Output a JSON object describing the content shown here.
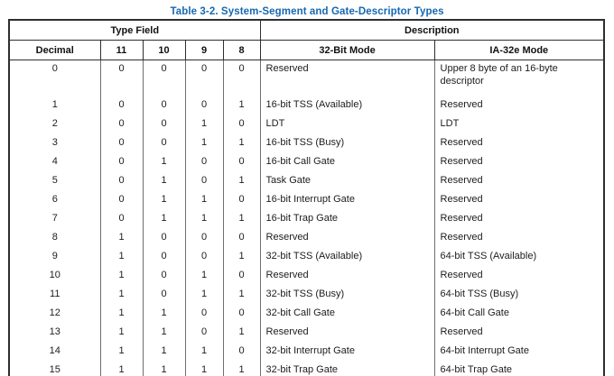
{
  "title": "Table 3-2.  System-Segment and Gate-Descriptor Types",
  "header": {
    "type_field": "Type Field",
    "description": "Description",
    "columns": [
      "Decimal",
      "11",
      "10",
      "9",
      "8",
      "32-Bit Mode",
      "IA-32e Mode"
    ]
  },
  "rows": [
    {
      "decimal": "0",
      "bits": [
        "0",
        "0",
        "0",
        "0"
      ],
      "mode_32bit": "Reserved",
      "mode_ia32e": "Upper 8 byte of an 16-byte descriptor"
    },
    {
      "decimal": "1",
      "bits": [
        "0",
        "0",
        "0",
        "1"
      ],
      "mode_32bit": "16-bit TSS (Available)",
      "mode_ia32e": "Reserved"
    },
    {
      "decimal": "2",
      "bits": [
        "0",
        "0",
        "1",
        "0"
      ],
      "mode_32bit": "LDT",
      "mode_ia32e": "LDT"
    },
    {
      "decimal": "3",
      "bits": [
        "0",
        "0",
        "1",
        "1"
      ],
      "mode_32bit": "16-bit TSS (Busy)",
      "mode_ia32e": "Reserved"
    },
    {
      "decimal": "4",
      "bits": [
        "0",
        "1",
        "0",
        "0"
      ],
      "mode_32bit": "16-bit Call Gate",
      "mode_ia32e": "Reserved"
    },
    {
      "decimal": "5",
      "bits": [
        "0",
        "1",
        "0",
        "1"
      ],
      "mode_32bit": "Task Gate",
      "mode_ia32e": "Reserved"
    },
    {
      "decimal": "6",
      "bits": [
        "0",
        "1",
        "1",
        "0"
      ],
      "mode_32bit": "16-bit Interrupt Gate",
      "mode_ia32e": "Reserved"
    },
    {
      "decimal": "7",
      "bits": [
        "0",
        "1",
        "1",
        "1"
      ],
      "mode_32bit": "16-bit Trap Gate",
      "mode_ia32e": "Reserved"
    },
    {
      "decimal": "8",
      "bits": [
        "1",
        "0",
        "0",
        "0"
      ],
      "mode_32bit": "Reserved",
      "mode_ia32e": "Reserved"
    },
    {
      "decimal": "9",
      "bits": [
        "1",
        "0",
        "0",
        "1"
      ],
      "mode_32bit": "32-bit TSS (Available)",
      "mode_ia32e": "64-bit TSS (Available)"
    },
    {
      "decimal": "10",
      "bits": [
        "1",
        "0",
        "1",
        "0"
      ],
      "mode_32bit": "Reserved",
      "mode_ia32e": "Reserved"
    },
    {
      "decimal": "11",
      "bits": [
        "1",
        "0",
        "1",
        "1"
      ],
      "mode_32bit": "32-bit TSS (Busy)",
      "mode_ia32e": "64-bit TSS (Busy)"
    },
    {
      "decimal": "12",
      "bits": [
        "1",
        "1",
        "0",
        "0"
      ],
      "mode_32bit": "32-bit Call Gate",
      "mode_ia32e": "64-bit Call Gate"
    },
    {
      "decimal": "13",
      "bits": [
        "1",
        "1",
        "0",
        "1"
      ],
      "mode_32bit": "Reserved",
      "mode_ia32e": "Reserved"
    },
    {
      "decimal": "14",
      "bits": [
        "1",
        "1",
        "1",
        "0"
      ],
      "mode_32bit": "32-bit Interrupt Gate",
      "mode_ia32e": "64-bit Interrupt Gate"
    },
    {
      "decimal": "15",
      "bits": [
        "1",
        "1",
        "1",
        "1"
      ],
      "mode_32bit": "32-bit Trap Gate",
      "mode_ia32e": "64-bit Trap Gate"
    }
  ],
  "colors": {
    "title_blue": "#1568b3",
    "text": "#1c1c1c",
    "border_dark": "#2e2e2e",
    "border_gray": "#6e6e6e"
  }
}
